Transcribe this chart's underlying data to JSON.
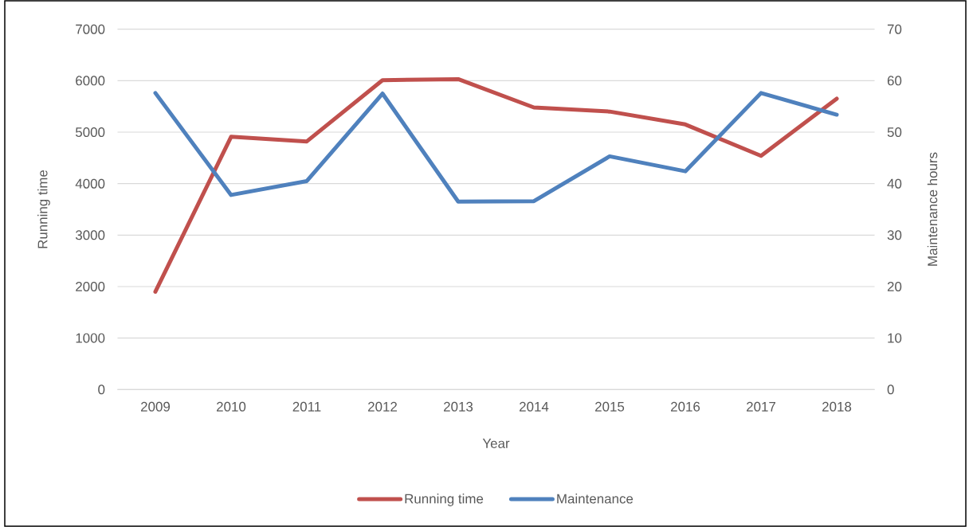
{
  "chart_data": {
    "type": "line",
    "xlabel": "Year",
    "ylabel": "Running time",
    "y2label": "Maintenance hours",
    "categories": [
      "2009",
      "2010",
      "2011",
      "2012",
      "2013",
      "2014",
      "2015",
      "2016",
      "2017",
      "2018"
    ],
    "series": [
      {
        "name": "Running time",
        "color": "#c0504d",
        "values": [
          1900,
          4910,
          4820,
          6010,
          6030,
          5480,
          5400,
          5150,
          4540,
          5650
        ]
      },
      {
        "name": "Maintenance",
        "color": "#4f81bd",
        "axis": "y2",
        "values": [
          57.6,
          37.8,
          40.5,
          57.5,
          36.5,
          36.6,
          45.3,
          42.4,
          57.6,
          53.4
        ]
      }
    ],
    "ylim": [
      0,
      7000
    ],
    "yticks": [
      0,
      1000,
      2000,
      3000,
      4000,
      5000,
      6000,
      7000
    ],
    "y2lim": [
      0,
      70
    ],
    "y2ticks": [
      0,
      10,
      20,
      30,
      40,
      50,
      60,
      70
    ],
    "grid": "y",
    "legend": "bottom",
    "line_style": "solid"
  }
}
